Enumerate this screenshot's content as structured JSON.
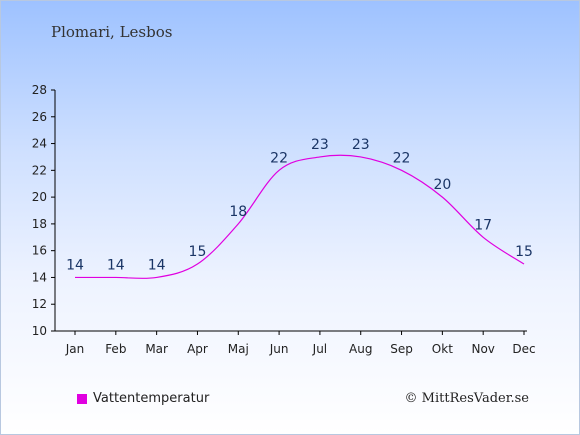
{
  "chart_data": {
    "type": "line",
    "title": "Plomari, Lesbos",
    "categories": [
      "Jan",
      "Feb",
      "Mar",
      "Apr",
      "Maj",
      "Jun",
      "Jul",
      "Aug",
      "Sep",
      "Okt",
      "Nov",
      "Dec"
    ],
    "series": [
      {
        "name": "Vattentemperatur",
        "values": [
          14,
          14,
          14,
          15,
          18,
          22,
          23,
          23,
          22,
          20,
          17,
          15
        ],
        "color": "#e000e0"
      }
    ],
    "yticks": [
      10,
      12,
      14,
      16,
      18,
      20,
      22,
      24,
      26,
      28
    ],
    "ylim": [
      10,
      28
    ],
    "grid": false,
    "legend_position": "bottom-left"
  },
  "credit": "© MittResVader.se"
}
